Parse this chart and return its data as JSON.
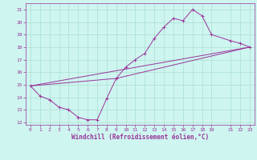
{
  "bg_color": "#cef5f0",
  "grid_color": "#aae0d0",
  "line_color": "#993399",
  "spine_color": "#993399",
  "xlabel": "Windchill (Refroidissement éolien,°C)",
  "xlim": [
    -0.5,
    23.5
  ],
  "ylim": [
    11.8,
    21.5
  ],
  "yticks": [
    12,
    13,
    14,
    15,
    16,
    17,
    18,
    19,
    20,
    21
  ],
  "xticks": [
    0,
    1,
    2,
    3,
    4,
    5,
    6,
    7,
    8,
    9,
    10,
    11,
    12,
    13,
    14,
    15,
    16,
    17,
    18,
    19,
    21,
    22,
    23
  ],
  "tick_fontsize": 4.5,
  "xlabel_fontsize": 5.5,
  "line1_x": [
    0,
    1,
    2,
    3,
    4,
    5,
    6,
    7,
    8,
    9,
    10,
    11,
    12,
    13,
    14,
    15,
    16,
    17,
    18,
    19,
    21,
    22,
    23
  ],
  "line1_y": [
    14.9,
    14.1,
    13.8,
    13.2,
    13.0,
    12.4,
    12.2,
    12.2,
    13.9,
    15.5,
    16.4,
    17.0,
    17.5,
    18.7,
    19.6,
    20.3,
    20.1,
    21.0,
    20.5,
    19.0,
    18.5,
    18.3,
    18.0
  ],
  "line2_x": [
    0,
    23
  ],
  "line2_y": [
    14.9,
    18.0
  ],
  "line3_x": [
    0,
    9,
    23
  ],
  "line3_y": [
    14.9,
    15.5,
    18.0
  ],
  "linewidth": 0.7,
  "markersize": 2.5,
  "markeredgewidth": 0.7
}
